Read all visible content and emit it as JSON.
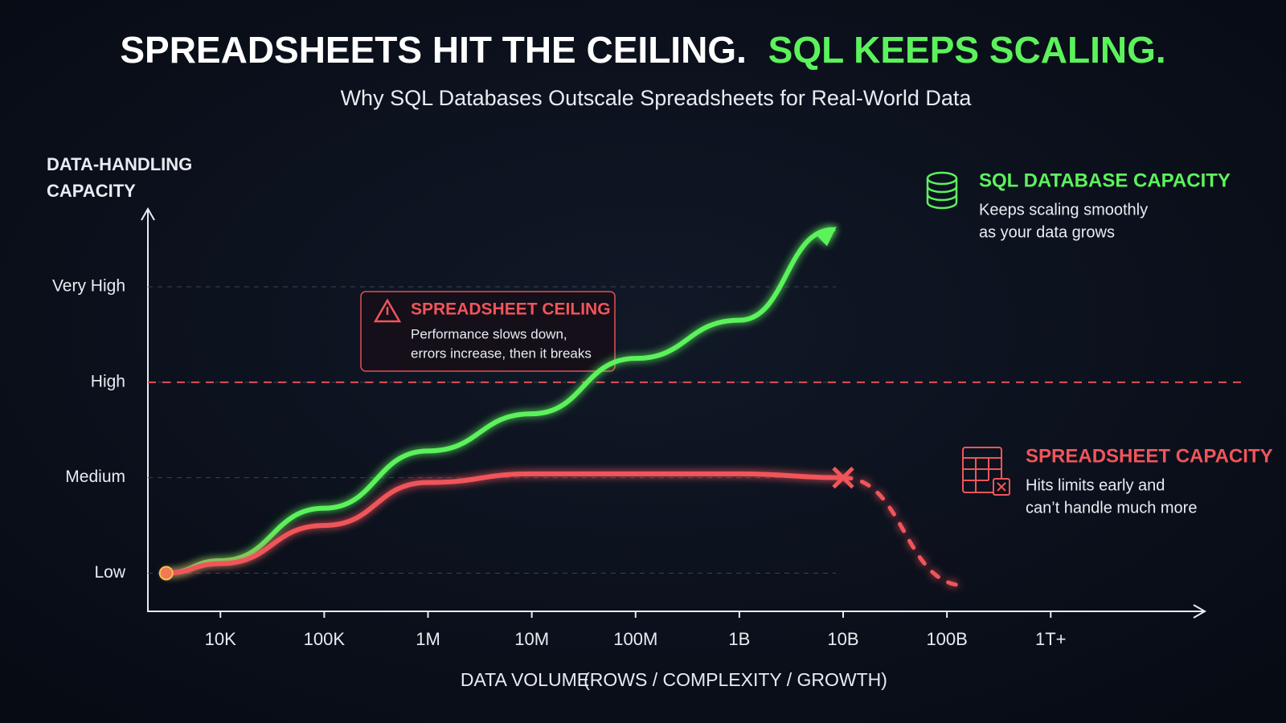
{
  "chart_data": {
    "type": "line",
    "title": "SPREADSHEETS HIT THE CEILING.",
    "title_highlight": "SQL KEEPS SCALING.",
    "subtitle": "Why SQL Databases Outscale Spreadsheets for Real-World Data",
    "y_label": [
      "DATA-HANDLING",
      "CAPACITY"
    ],
    "x_label": "DATA VOLUME",
    "x_label_detail": "(ROWS / COMPLEXITY / GROWTH)",
    "x_scale": "log",
    "xlim": [
      2000,
      30000000000000
    ],
    "xticks": [
      {
        "value": 10000,
        "label": "10K"
      },
      {
        "value": 100000,
        "label": "100K"
      },
      {
        "value": 1000000,
        "label": "1M"
      },
      {
        "value": 10000000,
        "label": "10M"
      },
      {
        "value": 100000000,
        "label": "100M"
      },
      {
        "value": 1000000000,
        "label": "1B"
      },
      {
        "value": 10000000000,
        "label": "10B"
      },
      {
        "value": 100000000000,
        "label": "100B"
      },
      {
        "value": 1000000000000,
        "label": "1T+"
      }
    ],
    "ylim": [
      0.6,
      4.8
    ],
    "yticks": [
      {
        "value": 1,
        "label": "Low"
      },
      {
        "value": 2,
        "label": "Medium"
      },
      {
        "value": 3,
        "label": "High"
      },
      {
        "value": 4,
        "label": "Very High"
      }
    ],
    "ceiling": 3,
    "series": [
      {
        "name": "SQL DATABASE CAPACITY",
        "note": [
          "Keeps scaling smoothly",
          "as your data grows"
        ],
        "color": "#5cf25c",
        "x": [
          3000,
          10000,
          100000,
          1000000,
          10000000,
          100000000,
          1000000000,
          8000000000
        ],
        "values": [
          1.0,
          1.13,
          1.68,
          2.28,
          2.67,
          3.25,
          3.65,
          4.6
        ]
      },
      {
        "name": "SPREADSHEET CAPACITY",
        "note": [
          "Hits limits early and",
          "can’t handle much more"
        ],
        "color": "#f0555a",
        "x": [
          3000,
          10000,
          100000,
          1000000,
          10000000,
          100000000,
          1000000000,
          10000000000,
          150000000000
        ],
        "values": [
          1.0,
          1.1,
          1.5,
          1.95,
          2.04,
          2.04,
          2.04,
          2.0,
          0.87
        ],
        "failure_index": 7
      }
    ],
    "annotation": {
      "title": "SPREADSHEET CEILING",
      "text": [
        "Performance slows down,",
        "errors increase, then it breaks"
      ]
    }
  }
}
